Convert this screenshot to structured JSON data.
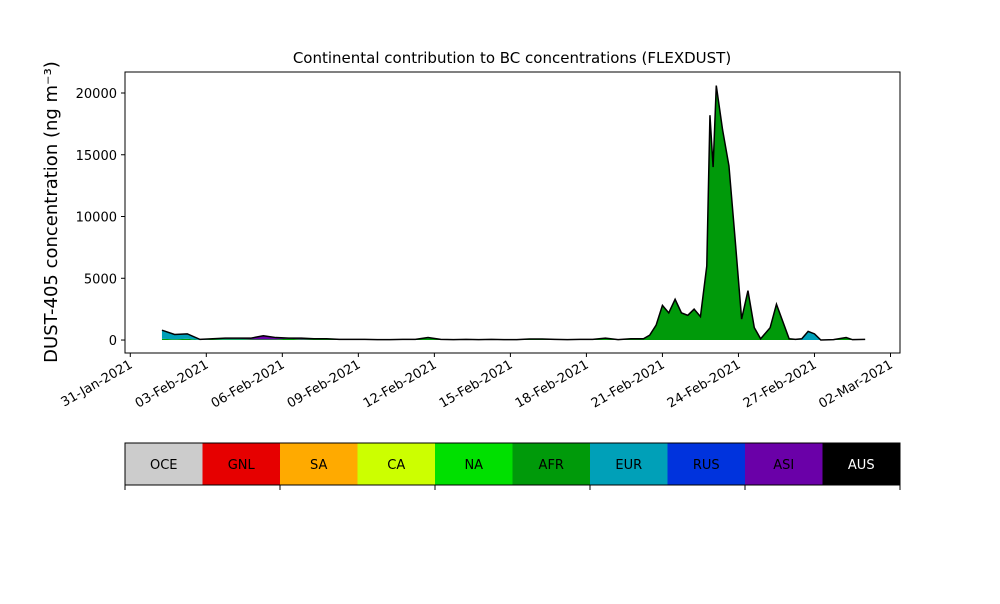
{
  "chart_data": {
    "type": "stacked_area",
    "title": "Continental contribution to BC concentrations (FLEXDUST)",
    "y_label": "DUST-405 concentration (ng m⁻³)",
    "x": [
      "2021-02-01T06:00",
      "2021-02-01T18:00",
      "2021-02-02T06:00",
      "2021-02-02T18:00",
      "2021-02-03T06:00",
      "2021-02-03T18:00",
      "2021-02-04T06:00",
      "2021-02-04T18:00",
      "2021-02-05T06:00",
      "2021-02-05T18:00",
      "2021-02-06T06:00",
      "2021-02-06T18:00",
      "2021-02-07T06:00",
      "2021-02-07T18:00",
      "2021-02-08T06:00",
      "2021-02-08T18:00",
      "2021-02-09T06:00",
      "2021-02-09T18:00",
      "2021-02-10T06:00",
      "2021-02-10T18:00",
      "2021-02-11T06:00",
      "2021-02-11T18:00",
      "2021-02-12T06:00",
      "2021-02-12T18:00",
      "2021-02-13T06:00",
      "2021-02-13T18:00",
      "2021-02-14T06:00",
      "2021-02-14T18:00",
      "2021-02-15T06:00",
      "2021-02-15T18:00",
      "2021-02-16T06:00",
      "2021-02-16T18:00",
      "2021-02-17T06:00",
      "2021-02-17T18:00",
      "2021-02-18T06:00",
      "2021-02-18T18:00",
      "2021-02-19T06:00",
      "2021-02-19T18:00",
      "2021-02-20T06:00",
      "2021-02-20T12:00",
      "2021-02-20T18:00",
      "2021-02-21T00:00",
      "2021-02-21T06:00",
      "2021-02-21T12:00",
      "2021-02-21T18:00",
      "2021-02-22T00:00",
      "2021-02-22T06:00",
      "2021-02-22T12:00",
      "2021-02-22T18:00",
      "2021-02-22T21:00",
      "2021-02-23T00:00",
      "2021-02-23T03:00",
      "2021-02-23T09:00",
      "2021-02-23T15:00",
      "2021-02-23T21:00",
      "2021-02-24T03:00",
      "2021-02-24T09:00",
      "2021-02-24T15:00",
      "2021-02-24T21:00",
      "2021-02-25T06:00",
      "2021-02-25T12:00",
      "2021-02-25T18:00",
      "2021-02-26T00:00",
      "2021-02-26T06:00",
      "2021-02-26T12:00",
      "2021-02-26T18:00",
      "2021-02-27T00:00",
      "2021-02-27T06:00",
      "2021-02-27T18:00",
      "2021-02-28T06:00",
      "2021-02-28T12:00",
      "2021-03-01T00:00"
    ],
    "series": [
      {
        "name": "AFR",
        "color": "#009a0a",
        "values": [
          100,
          50,
          100,
          0,
          50,
          50,
          50,
          50,
          50,
          50,
          100,
          50,
          50,
          50,
          50,
          50,
          50,
          30,
          30,
          50,
          50,
          150,
          50,
          30,
          50,
          30,
          50,
          30,
          30,
          80,
          80,
          50,
          30,
          50,
          50,
          150,
          30,
          100,
          100,
          400,
          1200,
          2800,
          2200,
          3300,
          2200,
          2000,
          2500,
          1900,
          6000,
          18200,
          14000,
          20600,
          17000,
          14100,
          8000,
          1700,
          4000,
          1000,
          100,
          1000,
          2900,
          1500,
          100,
          50,
          0,
          0,
          0,
          0,
          30,
          200,
          30,
          50
        ]
      },
      {
        "name": "EUR",
        "color": "#00a0b8",
        "values": [
          700,
          400,
          400,
          50,
          50,
          50,
          50,
          0,
          0,
          0,
          0,
          0,
          0,
          0,
          0,
          0,
          0,
          0,
          0,
          0,
          0,
          50,
          0,
          0,
          0,
          0,
          0,
          0,
          0,
          0,
          0,
          0,
          0,
          0,
          0,
          0,
          0,
          0,
          0,
          0,
          0,
          0,
          0,
          0,
          0,
          0,
          0,
          0,
          0,
          0,
          0,
          0,
          0,
          0,
          0,
          0,
          0,
          0,
          0,
          0,
          0,
          0,
          0,
          0,
          100,
          700,
          500,
          0,
          0,
          0,
          0,
          0
        ]
      },
      {
        "name": "ASI",
        "color": "#6a00a8",
        "values": [
          0,
          0,
          0,
          0,
          0,
          50,
          50,
          100,
          300,
          150,
          50,
          100,
          50,
          50,
          0,
          0,
          0,
          0,
          0,
          0,
          0,
          0,
          0,
          0,
          0,
          0,
          0,
          0,
          0,
          0,
          0,
          0,
          0,
          0,
          0,
          0,
          0,
          0,
          0,
          0,
          0,
          0,
          0,
          0,
          0,
          0,
          0,
          0,
          0,
          0,
          0,
          0,
          0,
          0,
          0,
          0,
          0,
          0,
          0,
          0,
          0,
          0,
          0,
          0,
          0,
          0,
          0,
          0,
          0,
          0,
          0,
          0
        ]
      }
    ],
    "xlim": [
      "2021-01-30T19:00",
      "2021-03-02T09:00"
    ],
    "xticks": [
      {
        "value": "2021-01-31T00:00",
        "label": "31-Jan-2021"
      },
      {
        "value": "2021-02-03T00:00",
        "label": "03-Feb-2021"
      },
      {
        "value": "2021-02-06T00:00",
        "label": "06-Feb-2021"
      },
      {
        "value": "2021-02-09T00:00",
        "label": "09-Feb-2021"
      },
      {
        "value": "2021-02-12T00:00",
        "label": "12-Feb-2021"
      },
      {
        "value": "2021-02-15T00:00",
        "label": "15-Feb-2021"
      },
      {
        "value": "2021-02-18T00:00",
        "label": "18-Feb-2021"
      },
      {
        "value": "2021-02-21T00:00",
        "label": "21-Feb-2021"
      },
      {
        "value": "2021-02-24T00:00",
        "label": "24-Feb-2021"
      },
      {
        "value": "2021-02-27T00:00",
        "label": "27-Feb-2021"
      },
      {
        "value": "2021-03-02T00:00",
        "label": "02-Mar-2021"
      }
    ],
    "ylim": [
      -1050,
      21700
    ],
    "yticks": [
      0,
      5000,
      10000,
      15000,
      20000
    ],
    "outline_color": "#000000",
    "colorbar": {
      "labels": [
        "OCE",
        "GNL",
        "SA",
        "CA",
        "NA",
        "AFR",
        "EUR",
        "RUS",
        "ASI",
        "AUS"
      ],
      "colors": [
        "#cccccc",
        "#e60000",
        "#ffaa00",
        "#ccff00",
        "#00e000",
        "#009a0a",
        "#00a0b8",
        "#0033dd",
        "#6a00a8",
        "#000000"
      ]
    }
  }
}
